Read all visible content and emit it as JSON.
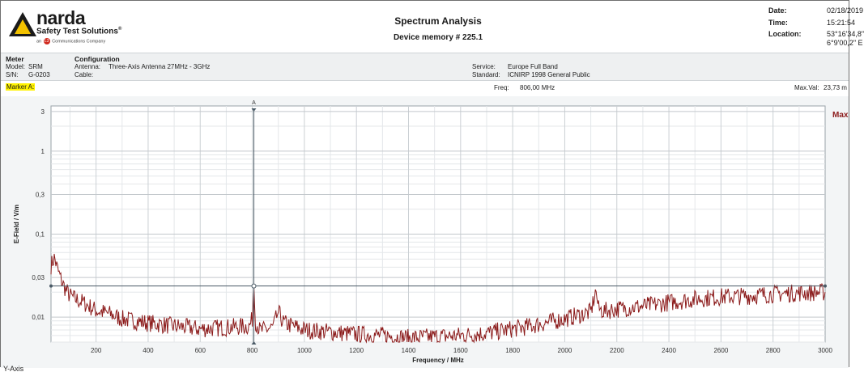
{
  "header": {
    "brand": "narda",
    "tagline": "Safety Test Solutions",
    "tagline_mark": "®",
    "company_prefix": "an",
    "company_badge": "L3",
    "company_suffix": "Communications Company",
    "title": "Spectrum Analysis",
    "subtitle": "Device memory # 225.1",
    "date_label": "Date:",
    "date_value": "02/18/2019",
    "time_label": "Time:",
    "time_value": "15:21:54",
    "location_label": "Location:",
    "location_value_1": "53°16'34,8\"",
    "location_value_2": "6°9'00,2\" E"
  },
  "info": {
    "meter_title": "Meter",
    "model_label": "Model:",
    "model_value": "SRM",
    "sn_label": "S/N:",
    "sn_value": "G-0203",
    "config_title": "Configuration",
    "antenna_label": "Antenna:",
    "antenna_value": "Three-Axis Antenna 27MHz - 3GHz",
    "cable_label": "Cable:",
    "cable_value": "",
    "service_label": "Service:",
    "service_value": "Europe Full Band",
    "standard_label": "Standard:",
    "standard_value": "ICNIRP 1998 General Public"
  },
  "marker": {
    "label": "Marker A:",
    "freq_label": "Freq:",
    "freq_value": "806,00 MHz",
    "maxval_label": "Max.Val:",
    "maxval_value": "23,73 m"
  },
  "footer": {
    "y_axis_label": "Y-Axis"
  },
  "colors": {
    "trace": "#8b1a1a",
    "max_label": "#8b1a1a",
    "marker_line": "#4a5a66",
    "grid": "#cfd4d8",
    "background": "#f3f5f6"
  },
  "chart_data": {
    "type": "line",
    "title": "",
    "xlabel": "Frequency / MHz",
    "ylabel": "E-Field / V/m",
    "xlim": [
      27,
      3000
    ],
    "ylim": [
      0.005,
      3.5
    ],
    "yscale": "log",
    "x_ticks": [
      200,
      400,
      600,
      800,
      1000,
      1200,
      1400,
      1600,
      1800,
      2000,
      2200,
      2400,
      2600,
      2800,
      3000
    ],
    "y_ticks": [
      0.01,
      0.03,
      0.1,
      0.3,
      1,
      3
    ],
    "y_tick_labels": [
      "0,01",
      "0,03",
      "0,1",
      "0,3",
      "1",
      "3"
    ],
    "grid": true,
    "legend": {
      "label": "Max",
      "placement": "top-right"
    },
    "marker": {
      "name": "A",
      "x": 806,
      "y": 0.02373
    },
    "series": [
      {
        "name": "Max",
        "x": [
          27,
          40,
          55,
          70,
          85,
          100,
          120,
          150,
          200,
          250,
          300,
          400,
          500,
          600,
          700,
          790,
          800,
          806,
          812,
          830,
          880,
          900,
          920,
          1000,
          1100,
          1200,
          1300,
          1400,
          1500,
          1600,
          1700,
          1800,
          1850,
          1900,
          2000,
          2050,
          2100,
          2120,
          2130,
          2150,
          2200,
          2300,
          2400,
          2500,
          2600,
          2700,
          2800,
          2900,
          3000
        ],
        "y": [
          0.042,
          0.052,
          0.035,
          0.026,
          0.021,
          0.018,
          0.0165,
          0.015,
          0.012,
          0.011,
          0.0095,
          0.0085,
          0.0078,
          0.0072,
          0.0075,
          0.0078,
          0.0095,
          0.0237,
          0.009,
          0.0068,
          0.0075,
          0.0115,
          0.0085,
          0.007,
          0.0066,
          0.0062,
          0.006,
          0.0056,
          0.0058,
          0.006,
          0.0064,
          0.0072,
          0.0076,
          0.0082,
          0.0095,
          0.0105,
          0.0115,
          0.021,
          0.0125,
          0.0118,
          0.0125,
          0.0135,
          0.015,
          0.0165,
          0.0175,
          0.018,
          0.019,
          0.0195,
          0.02
        ]
      }
    ]
  }
}
